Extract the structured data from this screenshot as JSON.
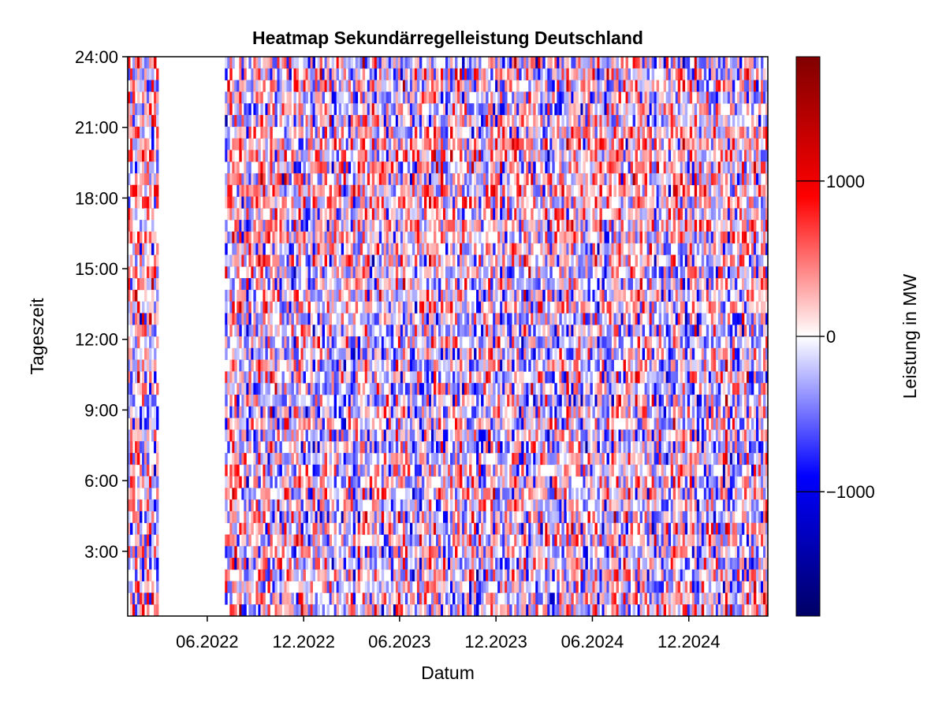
{
  "chart_data": {
    "type": "heatmap",
    "title": "Heatmap Sekundärregelleistung Deutschland",
    "xlabel": "Datum",
    "ylabel": "Tageszeit",
    "colorbar_label": "Leistung in MW",
    "x_tick_labels": [
      "06.2022",
      "12.2022",
      "06.2023",
      "12.2023",
      "06.2024",
      "12.2024"
    ],
    "x_tick_dates": [
      "2022-06-01",
      "2022-12-01",
      "2023-06-01",
      "2023-12-01",
      "2024-06-01",
      "2024-12-01"
    ],
    "x_range": [
      "2022-01-01",
      "2025-04-30"
    ],
    "y_tick_labels": [
      "3:00",
      "6:00",
      "9:00",
      "12:00",
      "15:00",
      "18:00",
      "21:00",
      "24:00"
    ],
    "y_tick_values": [
      3,
      6,
      9,
      12,
      15,
      18,
      21,
      24
    ],
    "y_range": [
      0.25,
      24
    ],
    "missing_data_range": [
      "2022-03-01",
      "2022-07-01"
    ],
    "color_range": [
      -1800,
      1800
    ],
    "colorbar_ticks": [
      1000,
      0,
      -1000
    ],
    "colorbar_tick_labels": [
      "1000",
      "0",
      "−1000"
    ],
    "colormap": [
      "#000066",
      "#0000ff",
      "#ffffff",
      "#ff0000",
      "#800000"
    ],
    "grid": false
  }
}
